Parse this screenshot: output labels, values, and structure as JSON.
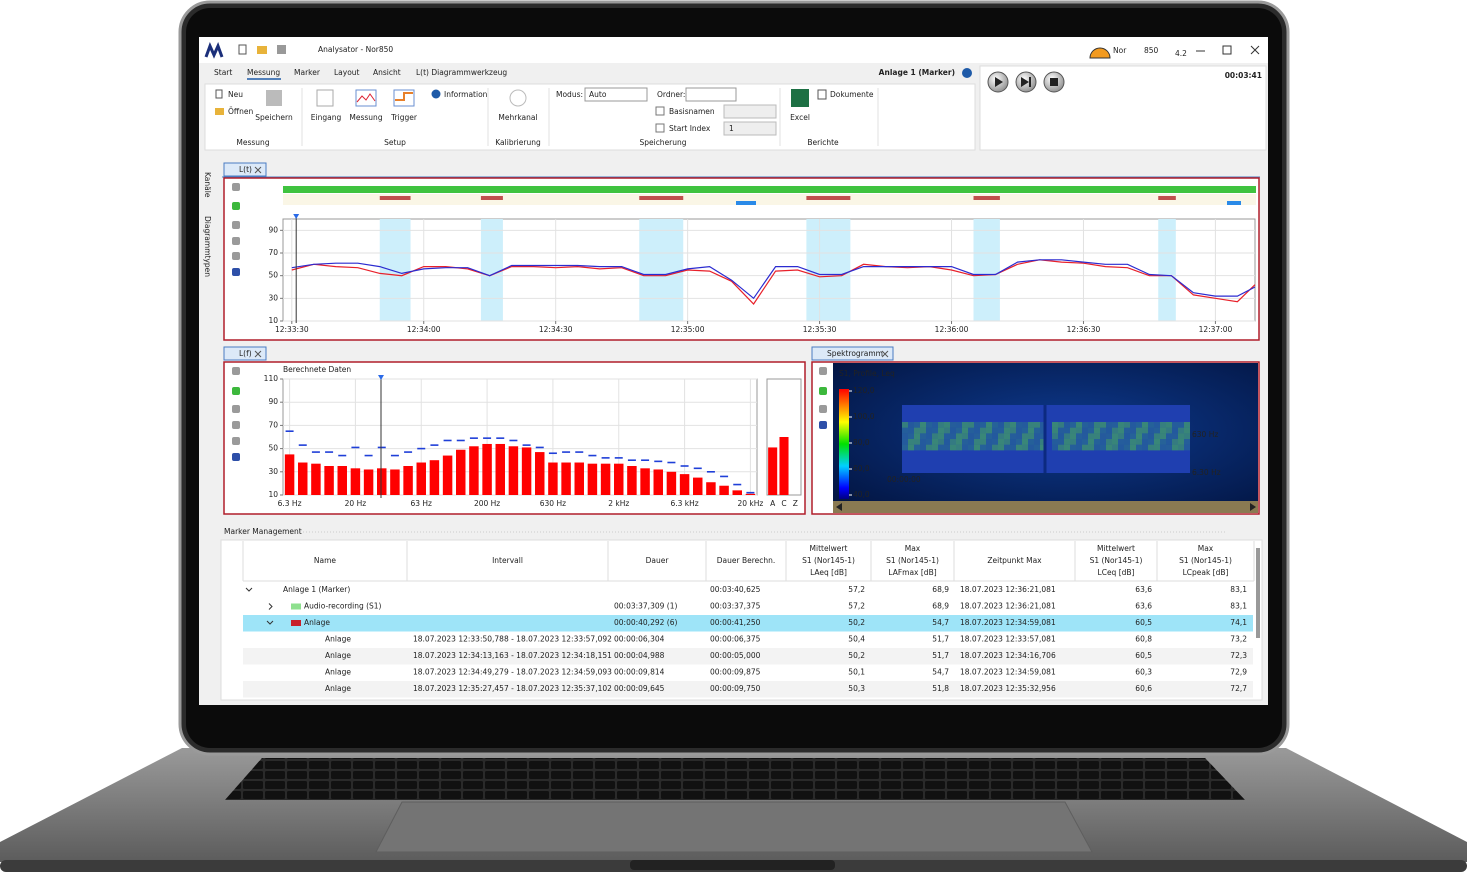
{
  "window": {
    "title": "Analysator - Nor850",
    "brand": "Nor",
    "model": "850",
    "version": "4.2"
  },
  "menu": {
    "tabs": [
      "Start",
      "Messung",
      "Marker",
      "Layout",
      "Ansicht",
      "L(t) Diagrammwerkzeug"
    ],
    "marker_label": "Anlage 1 (Marker)"
  },
  "ribbon": {
    "items": [
      "Neu",
      "Öffnen",
      "Speichern",
      "Eingang",
      "Messung",
      "Trigger",
      "Information",
      "Mehrkanal",
      "Modus:",
      "Auto",
      "Ordner:",
      "Basisnamen",
      "Start Index",
      "1",
      "Excel",
      "Dokumente"
    ],
    "groups": [
      "Messung",
      "Setup",
      "Kalibrierung",
      "Speicherung",
      "Berichte"
    ]
  },
  "player": {
    "time": "00:03:41"
  },
  "side_tabs": [
    "Kanäle",
    "Diagrammtypen"
  ],
  "panels": {
    "lt": "L(t)",
    "lf": "L(f)",
    "spectrogram": "Spektrogramm",
    "markers": "Marker Management"
  },
  "chart_data": [
    {
      "type": "line",
      "x": [
        "12:33:30",
        "12:33:35",
        "12:33:40",
        "12:33:45",
        "12:33:50",
        "12:33:55",
        "12:34:00",
        "12:34:05",
        "12:34:10",
        "12:34:15",
        "12:34:20",
        "12:34:25",
        "12:34:30",
        "12:34:35",
        "12:34:40",
        "12:34:45",
        "12:34:50",
        "12:34:55",
        "12:35:00",
        "12:35:05",
        "12:35:10",
        "12:35:15",
        "12:35:20",
        "12:35:25",
        "12:35:30",
        "12:35:35",
        "12:35:40",
        "12:35:45",
        "12:35:50",
        "12:35:55",
        "12:36:00",
        "12:36:05",
        "12:36:10",
        "12:36:15",
        "12:36:20",
        "12:36:25",
        "12:36:30",
        "12:36:35",
        "12:36:40",
        "12:36:45",
        "12:36:50",
        "12:36:55",
        "12:37:00",
        "12:37:05",
        "12:37:09"
      ],
      "series": [
        {
          "color": "#e8202a",
          "values": [
            55,
            60,
            58,
            57,
            52,
            50,
            58,
            58,
            56,
            50,
            58,
            58,
            57,
            58,
            56,
            57,
            50,
            50,
            55,
            54,
            45,
            25,
            54,
            55,
            49,
            50,
            60,
            58,
            57,
            58,
            55,
            50,
            51,
            60,
            64,
            62,
            61,
            58,
            57,
            50,
            50,
            33,
            30,
            27,
            42
          ]
        },
        {
          "color": "#2b2bd0",
          "values": [
            57,
            60,
            61,
            61,
            58,
            52,
            56,
            57,
            57,
            50,
            59,
            59,
            59,
            59,
            58,
            58,
            51,
            51,
            56,
            58,
            46,
            30,
            58,
            58,
            51,
            51,
            58,
            58,
            58,
            58,
            58,
            51,
            51,
            62,
            64,
            64,
            62,
            60,
            60,
            51,
            50,
            35,
            32,
            32,
            40
          ]
        }
      ],
      "xlim": [
        "12:33:28",
        "12:37:09"
      ],
      "xticks": [
        "12:33:30",
        "12:34:00",
        "12:34:30",
        "12:35:00",
        "12:35:30",
        "12:36:00",
        "12:36:30",
        "12:37:00"
      ],
      "ylim": [
        10,
        100
      ],
      "yticks": [
        10,
        30,
        50,
        70,
        90
      ],
      "grid": true,
      "highlight_bands": [
        [
          "12:33:50",
          "12:33:57"
        ],
        [
          "12:34:13",
          "12:34:18"
        ],
        [
          "12:34:49",
          "12:34:59"
        ],
        [
          "12:35:27",
          "12:35:37"
        ],
        [
          "12:36:05",
          "12:36:11"
        ],
        [
          "12:36:47",
          "12:36:51"
        ]
      ],
      "cursor": "12:33:31"
    },
    {
      "type": "bar",
      "title": "Berechnete Daten",
      "categories": [
        "6.3 Hz",
        null,
        null,
        null,
        null,
        "20 Hz",
        null,
        null,
        null,
        null,
        "63 Hz",
        null,
        null,
        null,
        null,
        "200 Hz",
        null,
        null,
        null,
        null,
        "630 Hz",
        null,
        null,
        null,
        null,
        "2 kHz",
        null,
        null,
        null,
        null,
        "6.3 kHz",
        null,
        null,
        null,
        null,
        "20 kHz"
      ],
      "series": [
        {
          "color": "#ff0000",
          "values": [
            45,
            38,
            37,
            35,
            35,
            33,
            32,
            33,
            32,
            35,
            38,
            40,
            44,
            49,
            52,
            54,
            54,
            52,
            51,
            47,
            38,
            38,
            38,
            37,
            37,
            37,
            35,
            33,
            32,
            30,
            28,
            25,
            21,
            18,
            14,
            11
          ]
        },
        {
          "color": "#1f3fd8",
          "marker": "dash",
          "values": [
            65,
            53,
            47,
            47,
            44,
            51,
            44,
            51,
            44,
            47,
            50,
            53,
            57,
            57,
            59,
            59,
            59,
            57,
            53,
            51,
            46,
            47,
            47,
            44,
            42,
            42,
            40,
            40,
            39,
            38,
            35,
            33,
            30,
            26,
            19,
            12
          ]
        }
      ],
      "ylim": [
        10,
        110
      ],
      "yticks": [
        10,
        30,
        50,
        70,
        90,
        110
      ],
      "grid": true
    },
    {
      "type": "bar",
      "categories": [
        "A",
        "C",
        "Z"
      ],
      "values": [
        51,
        60,
        null
      ],
      "color": "#ff0000",
      "ylim": [
        10,
        110
      ]
    }
  ],
  "spectrogram": {
    "title": "S1, Profile, Leq",
    "colorlim": [
      40,
      120
    ],
    "colorticks": [
      {
        "value": 120,
        "label": "120,0"
      },
      {
        "value": 100,
        "label": "100,0"
      },
      {
        "value": 80,
        "label": "80,0"
      },
      {
        "value": 60,
        "label": "60,0"
      },
      {
        "value": 40,
        "label": "40,0"
      }
    ],
    "freq_labels": [
      "630 Hz",
      "6.30 Hz"
    ],
    "time_label": "00:00:00"
  },
  "table": {
    "columns": [
      [
        "Name"
      ],
      [
        "Intervall"
      ],
      [
        "Dauer"
      ],
      [
        "Dauer Berechn."
      ],
      [
        "Mittelwert",
        "S1 (Nor145-1)",
        "LAeq [dB]"
      ],
      [
        "Max",
        "S1 (Nor145-1)",
        "LAFmax [dB]"
      ],
      [
        "Zeitpunkt Max"
      ],
      [
        "Mittelwert",
        "S1 (Nor145-1)",
        "LCeq [dB]"
      ],
      [
        "Max",
        "S1 (Nor145-1)",
        "LCpeak [dB]"
      ]
    ],
    "rows": [
      [
        "Anlage 1 (Marker)",
        null,
        null,
        "00:03:40,625",
        "57,2",
        "68,9",
        "18.07.2023 12:36:21,081",
        "63,6",
        "83,1"
      ],
      [
        "Audio-recording (S1)",
        null,
        "00:03:37,309 (1)",
        "00:03:37,375",
        "57,2",
        "68,9",
        "18.07.2023 12:36:21,081",
        "63,6",
        "83,1"
      ],
      [
        "Anlage",
        null,
        "00:00:40,292 (6)",
        "00:00:41,250",
        "50,2",
        "54,7",
        "18.07.2023 12:34:59,081",
        "60,5",
        "74,1"
      ],
      [
        "Anlage",
        "18.07.2023 12:33:50,788 - 18.07.2023 12:33:57,092",
        "00:00:06,304",
        "00:00:06,375",
        "50,4",
        "51,7",
        "18.07.2023 12:33:57,081",
        "60,8",
        "73,2"
      ],
      [
        "Anlage",
        "18.07.2023 12:34:13,163 - 18.07.2023 12:34:18,151",
        "00:00:04,988",
        "00:00:05,000",
        "50,2",
        "51,7",
        "18.07.2023 12:34:16,706",
        "60,5",
        "72,3"
      ],
      [
        "Anlage",
        "18.07.2023 12:34:49,279 - 18.07.2023 12:34:59,093",
        "00:00:09,814",
        "00:00:09,875",
        "50,1",
        "54,7",
        "18.07.2023 12:34:59,081",
        "60,3",
        "72,9"
      ],
      [
        "Anlage",
        "18.07.2023 12:35:27,457 - 18.07.2023 12:35:37,102",
        "00:00:09,645",
        "00:00:09,750",
        "50,3",
        "51,8",
        "18.07.2023 12:35:32,956",
        "60,6",
        "72,7"
      ]
    ]
  }
}
